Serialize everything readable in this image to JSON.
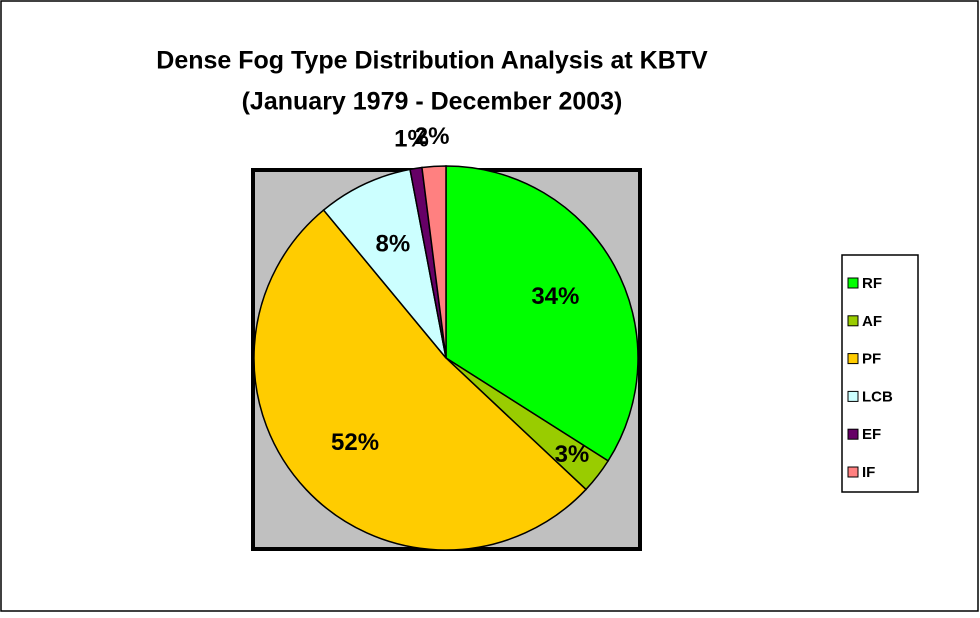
{
  "chart_data": {
    "type": "pie",
    "title": "Dense Fog Type Distribution Analysis at KBTV",
    "subtitle": "(January 1979 - December 2003)",
    "categories": [
      "RF",
      "AF",
      "PF",
      "LCB",
      "EF",
      "IF"
    ],
    "values": [
      34,
      3,
      52,
      8,
      1,
      2
    ],
    "value_labels": [
      "34%",
      "3%",
      "52%",
      "8%",
      "1%",
      "2%"
    ],
    "colors": [
      "#00ff00",
      "#99cc00",
      "#ffcc00",
      "#ccffff",
      "#660066",
      "#ff8080"
    ],
    "legend": "right"
  }
}
